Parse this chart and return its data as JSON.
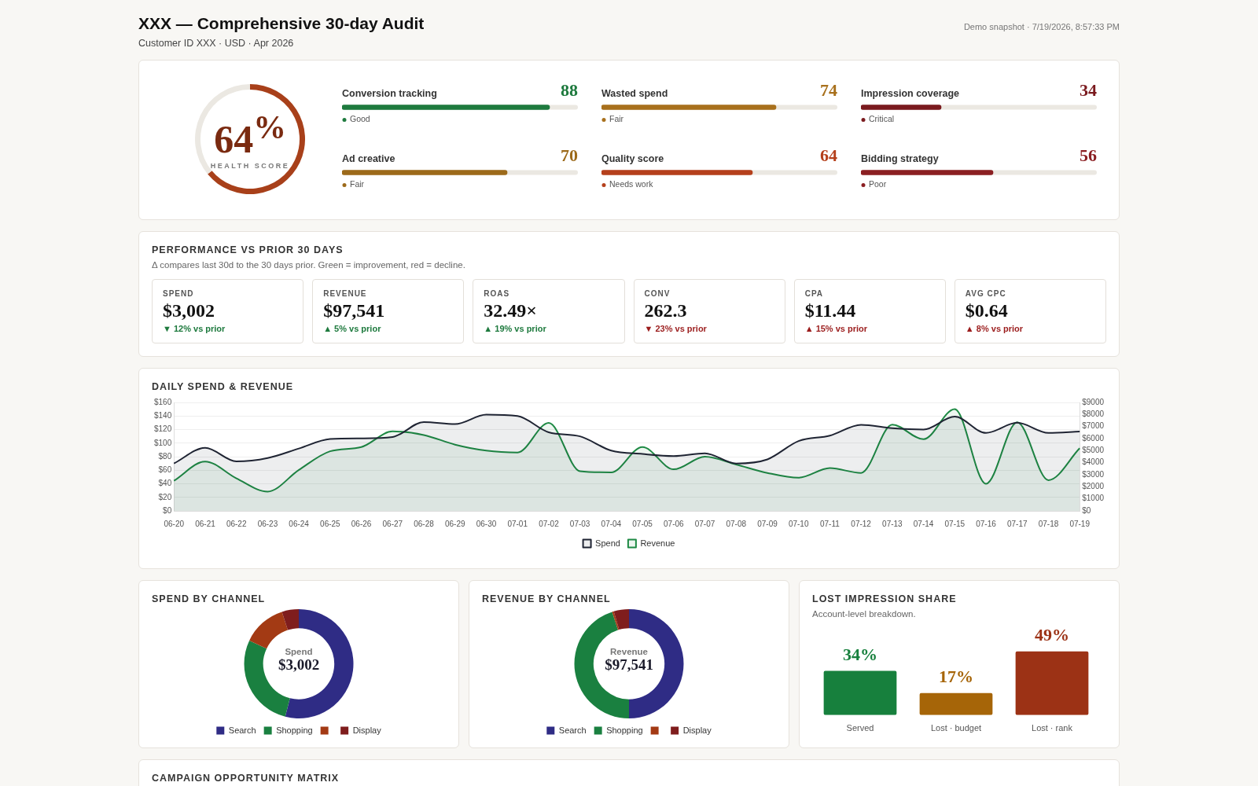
{
  "chart_data": [
    {
      "type": "other",
      "title": "XXX — Comprehensive 30-day Audit",
      "subtitle": "Customer ID XXX · USD · Apr 2026",
      "annotations": [
        "Demo snapshot · 7/19/2026, 8:57:33 PM"
      ]
    },
    {
      "type": "donut",
      "categories": [
        null,
        null
      ],
      "values": [
        64,
        36
      ],
      "colors": [
        "#a8401a",
        "#ebe8e2"
      ],
      "annotations": [
        "64$^{%}$",
        "HEALTH SCORE"
      ]
    },
    {
      "type": "bar",
      "orientation": "horizontal",
      "categories": [
        "Conversion tracking",
        "Ad creative"
      ],
      "values": [
        88,
        70
      ],
      "colors": [
        "#1e7a3e",
        "#9c6a1a"
      ],
      "xlim": [
        0,
        100
      ],
      "tick_labels": "y",
      "data_labels": true,
      "annotations": [
        "Good",
        "Fair"
      ]
    },
    {
      "type": "bar",
      "orientation": "horizontal",
      "categories": [
        "Wasted spend",
        "Quality score"
      ],
      "values": [
        74,
        64
      ],
      "colors": [
        "#a8701c",
        "#b5401c"
      ],
      "xlim": [
        0,
        100
      ],
      "tick_labels": "y",
      "data_labels": true,
      "annotations": [
        "Fair",
        "Needs work"
      ]
    },
    {
      "type": "bar",
      "orientation": "horizontal",
      "categories": [
        "Impression coverage",
        "Bidding strategy"
      ],
      "values": [
        34,
        56
      ],
      "colors": [
        "#7a1a1e",
        "#8b1f22"
      ],
      "xlim": [
        0,
        100
      ],
      "tick_labels": "y",
      "data_labels": true,
      "annotations": [
        "Critical",
        "Poor"
      ]
    },
    {
      "type": "other",
      "title": "PERFORMANCE VS PRIOR 30 DAYS",
      "subtitle": "Δ compares last 30d to the 30 days prior. Green = improvement, red = decline.",
      "annotations": [
        "SPEND",
        "$3,002",
        "▼ 12% vs prior",
        "REVENUE",
        "$97,541",
        "▲ 5% vs prior",
        "ROAS",
        "32.49×",
        "▲ 19% vs prior",
        "CONV",
        "262.3",
        "▼ 23% vs prior",
        "CPA",
        "$11.44",
        "▲ 15% vs prior",
        "AVG CPC",
        "$0.64",
        "▲ 8% vs prior"
      ],
      "colors": [
        "#1e7a3e",
        "#1e7a3e",
        "#1e7a3e",
        "#9b1c1c",
        "#9b1c1c",
        "#9b1c1c"
      ]
    },
    {
      "type": "area",
      "title": "DAILY SPEND & REVENUE",
      "categories": [
        "06-20",
        "06-21",
        "06-22",
        "06-23",
        "06-24",
        "06-25",
        "06-26",
        "06-27",
        "06-28",
        "06-29",
        "06-30",
        "07-01",
        "07-02",
        "07-03",
        "07-04",
        "07-05",
        "07-06",
        "07-07",
        "07-08",
        "07-09",
        "07-10",
        "07-11",
        "07-12",
        "07-13",
        "07-14",
        "07-15",
        "07-16",
        "07-17",
        "07-18",
        "07-19"
      ],
      "series": [
        {
          "name": "Spend",
          "color": "#1f2433",
          "values": [
            70,
            93,
            73,
            78,
            92,
            106,
            107,
            109,
            131,
            128,
            142,
            140,
            116,
            110,
            89,
            84,
            81,
            85,
            70,
            76,
            103,
            111,
            127,
            122,
            120,
            139,
            115,
            130,
            115,
            117
          ]
        },
        {
          "name": "Revenue",
          "color": "#1e8a44",
          "axis": "y2",
          "values": [
            2500,
            4100,
            2700,
            1600,
            3400,
            4950,
            5300,
            6600,
            6300,
            5500,
            5000,
            4850,
            7300,
            3300,
            3200,
            5300,
            3450,
            4500,
            3850,
            3150,
            2750,
            3550,
            3150,
            7150,
            5950,
            8450,
            2250,
            7350,
            2550,
            5200
          ]
        }
      ],
      "ylim": [
        0,
        160
      ],
      "yticks": [
        {
          "value": 0,
          "label": "$0"
        },
        {
          "value": 20,
          "label": "$20"
        },
        {
          "value": 40,
          "label": "$40"
        },
        {
          "value": 60,
          "label": "$60"
        },
        {
          "value": 80,
          "label": "$80"
        },
        {
          "value": 100,
          "label": "$100"
        },
        {
          "value": 120,
          "label": "$120"
        },
        {
          "value": 140,
          "label": "$140"
        },
        {
          "value": 160,
          "label": "$160"
        }
      ],
      "y2lim": [
        0,
        9000
      ],
      "y2ticks": [
        {
          "value": 0,
          "label": "$0"
        },
        {
          "value": 1000,
          "label": "$1000"
        },
        {
          "value": 2000,
          "label": "$2000"
        },
        {
          "value": 3000,
          "label": "$3000"
        },
        {
          "value": 4000,
          "label": "$4000"
        },
        {
          "value": 5000,
          "label": "$5000"
        },
        {
          "value": 6000,
          "label": "$6000"
        },
        {
          "value": 7000,
          "label": "$7000"
        },
        {
          "value": 8000,
          "label": "$8000"
        },
        {
          "value": 9000,
          "label": "$9000"
        }
      ],
      "grid": "y",
      "legend": "bottom",
      "marker": "none"
    },
    {
      "type": "donut",
      "title": "SPEND BY CHANNEL",
      "categories": [
        "Search",
        "Shopping",
        null,
        "Display"
      ],
      "values": [
        54,
        28,
        13,
        5
      ],
      "colors": [
        "#2f2c85",
        "#1a8040",
        "#a33a14",
        "#7f1d1d"
      ],
      "legend": "bottom",
      "annotations": [
        "Spend",
        "$3,002"
      ]
    },
    {
      "type": "donut",
      "title": "REVENUE BY CHANNEL",
      "categories": [
        "Search",
        "Shopping",
        null,
        "Display"
      ],
      "values": [
        50,
        45,
        0.5,
        4.5
      ],
      "colors": [
        "#2f2c85",
        "#1a8040",
        "#a33a14",
        "#7f1d1d"
      ],
      "legend": "bottom",
      "annotations": [
        "Revenue",
        "$97,541"
      ]
    },
    {
      "type": "bar",
      "title": "LOST IMPRESSION SHARE",
      "subtitle": "Account-level breakdown.",
      "categories": [
        "Served",
        "Lost · budget",
        "Lost · rank"
      ],
      "values": [
        34,
        17,
        49
      ],
      "colors": [
        "#17803d",
        "#a66508",
        "#9c3215"
      ],
      "value_labels": [
        "34%",
        "17%",
        "49%"
      ],
      "tick_labels": "x"
    },
    {
      "type": "other",
      "title": "CAMPAIGN OPPORTUNITY MATRIX"
    }
  ]
}
